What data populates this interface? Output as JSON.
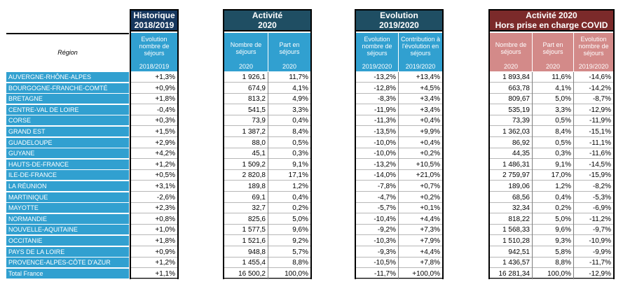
{
  "region_header": "Région",
  "groups": {
    "historique": "Historique\n2018/2019",
    "activite": "Activité\n2020",
    "evolution": "Evolution\n2019/2020",
    "covid": "Activité 2020\nHors prise en charge COVID"
  },
  "columns": {
    "hist_evol": {
      "label": "Evolution nombre de séjours",
      "year": "2018/2019"
    },
    "act_nb": {
      "label": "Nombre de séjours",
      "year": "2020"
    },
    "act_part": {
      "label": "Part en séjours",
      "year": "2020"
    },
    "evo_evol": {
      "label": "Evolution nombre de séjours",
      "year": "2019/2020"
    },
    "evo_contrib": {
      "label": "Contribution à l'évolution en séjours",
      "year": "2019/2020"
    },
    "cov_nb": {
      "label": "Nombre de séjours",
      "year": "2020"
    },
    "cov_part": {
      "label": "Part en séjours",
      "year": "2020"
    },
    "cov_evol": {
      "label": "Evolution nombre de séjours",
      "year": "2019/2020"
    }
  },
  "rows": [
    {
      "region": "AUVERGNE-RHÔNE-ALPES",
      "hist": "+1,3%",
      "nb": "1 926,1",
      "part": "11,7%",
      "evol": "-13,2%",
      "contrib": "+13,4%",
      "cnb": "1 893,84",
      "cpart": "11,6%",
      "cevol": "-14,6%"
    },
    {
      "region": "BOURGOGNE-FRANCHE-COMTÉ",
      "hist": "+0,9%",
      "nb": "674,9",
      "part": "4,1%",
      "evol": "-12,8%",
      "contrib": "+4,5%",
      "cnb": "663,78",
      "cpart": "4,1%",
      "cevol": "-14,2%"
    },
    {
      "region": "BRETAGNE",
      "hist": "+1,8%",
      "nb": "813,2",
      "part": "4,9%",
      "evol": "-8,3%",
      "contrib": "+3,4%",
      "cnb": "809,67",
      "cpart": "5,0%",
      "cevol": "-8,7%"
    },
    {
      "region": "CENTRE-VAL DE LOIRE",
      "hist": "-0,4%",
      "nb": "541,5",
      "part": "3,3%",
      "evol": "-11,9%",
      "contrib": "+3,4%",
      "cnb": "535,19",
      "cpart": "3,3%",
      "cevol": "-12,9%"
    },
    {
      "region": "CORSE",
      "hist": "+0,3%",
      "nb": "73,9",
      "part": "0,4%",
      "evol": "-11,3%",
      "contrib": "+0,4%",
      "cnb": "73,39",
      "cpart": "0,5%",
      "cevol": "-11,9%"
    },
    {
      "region": "GRAND EST",
      "hist": "+1,5%",
      "nb": "1 387,2",
      "part": "8,4%",
      "evol": "-13,5%",
      "contrib": "+9,9%",
      "cnb": "1 362,03",
      "cpart": "8,4%",
      "cevol": "-15,1%"
    },
    {
      "region": "GUADELOUPE",
      "hist": "+2,9%",
      "nb": "88,0",
      "part": "0,5%",
      "evol": "-10,0%",
      "contrib": "+0,4%",
      "cnb": "86,92",
      "cpart": "0,5%",
      "cevol": "-11,1%"
    },
    {
      "region": "GUYANE",
      "hist": "+4,2%",
      "nb": "45,1",
      "part": "0,3%",
      "evol": "-10,0%",
      "contrib": "+0,2%",
      "cnb": "44,35",
      "cpart": "0,3%",
      "cevol": "-11,6%"
    },
    {
      "region": "HAUTS-DE-FRANCE",
      "hist": "+1,2%",
      "nb": "1 509,2",
      "part": "9,1%",
      "evol": "-13,2%",
      "contrib": "+10,5%",
      "cnb": "1 486,31",
      "cpart": "9,1%",
      "cevol": "-14,5%"
    },
    {
      "region": "ILE-DE-FRANCE",
      "hist": "+0,5%",
      "nb": "2 820,8",
      "part": "17,1%",
      "evol": "-14,0%",
      "contrib": "+21,0%",
      "cnb": "2 759,97",
      "cpart": "17,0%",
      "cevol": "-15,9%"
    },
    {
      "region": "LA RÉUNION",
      "hist": "+3,1%",
      "nb": "189,8",
      "part": "1,2%",
      "evol": "-7,8%",
      "contrib": "+0,7%",
      "cnb": "189,06",
      "cpart": "1,2%",
      "cevol": "-8,2%"
    },
    {
      "region": "MARTINIQUE",
      "hist": "-2,6%",
      "nb": "69,1",
      "part": "0,4%",
      "evol": "-4,7%",
      "contrib": "+0,2%",
      "cnb": "68,56",
      "cpart": "0,4%",
      "cevol": "-5,3%"
    },
    {
      "region": "MAYOTTE",
      "hist": "+2,3%",
      "nb": "32,7",
      "part": "0,2%",
      "evol": "-5,7%",
      "contrib": "+0,1%",
      "cnb": "32,34",
      "cpart": "0,2%",
      "cevol": "-6,9%"
    },
    {
      "region": "NORMANDIE",
      "hist": "+0,8%",
      "nb": "825,6",
      "part": "5,0%",
      "evol": "-10,4%",
      "contrib": "+4,4%",
      "cnb": "818,22",
      "cpart": "5,0%",
      "cevol": "-11,2%"
    },
    {
      "region": "NOUVELLE-AQUITAINE",
      "hist": "+1,0%",
      "nb": "1 577,5",
      "part": "9,6%",
      "evol": "-9,2%",
      "contrib": "+7,3%",
      "cnb": "1 568,33",
      "cpart": "9,6%",
      "cevol": "-9,7%"
    },
    {
      "region": "OCCITANIE",
      "hist": "+1,8%",
      "nb": "1 521,6",
      "part": "9,2%",
      "evol": "-10,3%",
      "contrib": "+7,9%",
      "cnb": "1 510,28",
      "cpart": "9,3%",
      "cevol": "-10,9%"
    },
    {
      "region": "PAYS DE LA LOIRE",
      "hist": "+0,9%",
      "nb": "948,8",
      "part": "5,7%",
      "evol": "-9,3%",
      "contrib": "+4,4%",
      "cnb": "942,51",
      "cpart": "5,8%",
      "cevol": "-9,9%"
    },
    {
      "region": "PROVENCE-ALPES-CÔTE D'AZUR",
      "hist": "+1,2%",
      "nb": "1 455,4",
      "part": "8,8%",
      "evol": "-10,5%",
      "contrib": "+7,8%",
      "cnb": "1 436,57",
      "cpart": "8,8%",
      "cevol": "-11,7%"
    },
    {
      "region": "Total France",
      "hist": "+1,1%",
      "nb": "16 500,2",
      "part": "100,0%",
      "evol": "-11,7%",
      "contrib": "+100,0%",
      "cnb": "16 281,34",
      "cpart": "100,0%",
      "cevol": "-12,9%"
    }
  ],
  "colors": {
    "header_blue": "#31a0d0",
    "header_red": "#d38a89",
    "group_dark": "#1f4e63",
    "group_covid": "#7b2a2a"
  }
}
